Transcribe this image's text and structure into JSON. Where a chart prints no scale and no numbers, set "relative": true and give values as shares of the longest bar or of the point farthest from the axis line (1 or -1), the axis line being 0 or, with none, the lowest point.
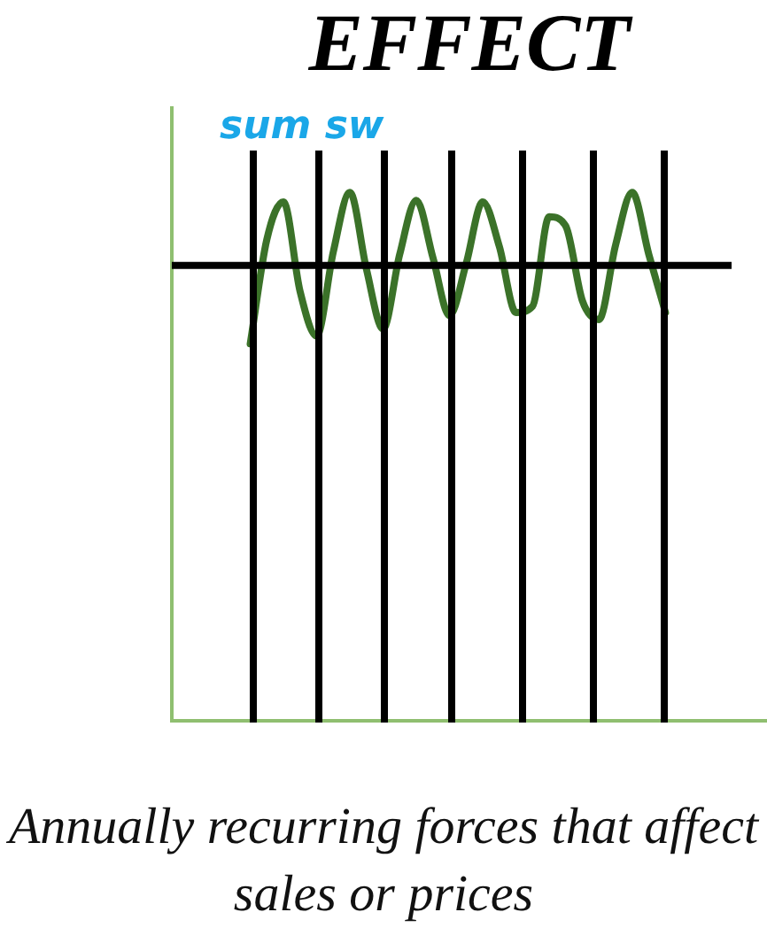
{
  "chart_data": {
    "type": "line",
    "title": "EFFECT",
    "relative": true,
    "categories": [
      null,
      null,
      null,
      null,
      null,
      null,
      null,
      null,
      null,
      null,
      null,
      null,
      null,
      null,
      null,
      null,
      null,
      null,
      null,
      null,
      null,
      null,
      null,
      null,
      null,
      null
    ],
    "series": [
      {
        "color": "#3b7229",
        "values": [
          -1,
          0.33,
          0.81,
          -0.33,
          -0.9,
          0.17,
          0.93,
          -0.05,
          -0.81,
          0.14,
          0.83,
          0.1,
          -0.64,
          0.02,
          0.81,
          0.24,
          -0.6,
          -0.52,
          0.62,
          0.5,
          -0.45,
          -0.69,
          0.26,
          0.93,
          0.14,
          -0.6
        ]
      }
    ],
    "annotations": [
      "sum sw",
      "Annually recurring forces that affect sales or prices"
    ],
    "grid": false,
    "legend": false,
    "marker": "none",
    "line_style": "solid"
  }
}
